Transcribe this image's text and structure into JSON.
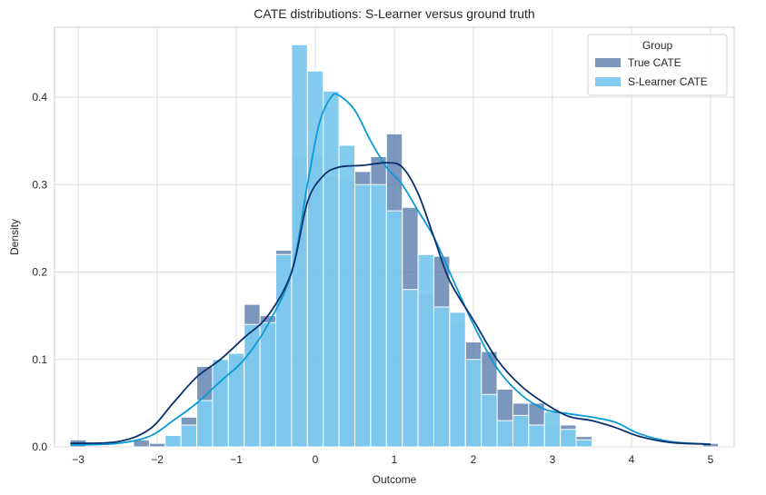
{
  "chart_data": {
    "type": "histogram",
    "title": "CATE distributions: S-Learner versus ground truth",
    "xlabel": "Outcome",
    "ylabel": "Density",
    "xlim": [
      -3.3,
      5.3
    ],
    "ylim": [
      0,
      0.48
    ],
    "xticks": [
      -3,
      -2,
      -1,
      0,
      1,
      2,
      3,
      4,
      5
    ],
    "xtick_labels": [
      "−3",
      "−2",
      "−1",
      "0",
      "1",
      "2",
      "3",
      "4",
      "5"
    ],
    "yticks": [
      0.0,
      0.1,
      0.2,
      0.3,
      0.4
    ],
    "ytick_labels": [
      "0.0",
      "0.1",
      "0.2",
      "0.3",
      "0.4"
    ],
    "grid": true,
    "bin_start": -3.1,
    "bin_width": 0.2,
    "legend": {
      "title": "Group",
      "position": "top-right",
      "entries": [
        "True CATE",
        "S-Learner CATE"
      ]
    },
    "series": [
      {
        "name": "True CATE",
        "color": "#4a6fa5",
        "kde_color": "#08306b",
        "values": [
          0.008,
          0.0,
          0.0,
          0.0,
          0.008,
          0.004,
          0.013,
          0.034,
          0.092,
          0.1,
          0.105,
          0.163,
          0.15,
          0.225,
          0.332,
          0.332,
          0.31,
          0.305,
          0.315,
          0.332,
          0.358,
          0.274,
          0.175,
          0.218,
          0.142,
          0.12,
          0.109,
          0.066,
          0.05,
          0.05,
          0.025,
          0.025,
          0.012,
          0.0,
          0.0,
          0.0,
          0.0,
          0.0,
          0.0,
          0.0,
          0.004
        ],
        "kde": [
          [
            -3.1,
            0.004
          ],
          [
            -2.5,
            0.006
          ],
          [
            -2.1,
            0.02
          ],
          [
            -1.8,
            0.05
          ],
          [
            -1.5,
            0.08
          ],
          [
            -1.2,
            0.1
          ],
          [
            -0.9,
            0.125
          ],
          [
            -0.6,
            0.15
          ],
          [
            -0.3,
            0.2
          ],
          [
            -0.1,
            0.28
          ],
          [
            0.1,
            0.31
          ],
          [
            0.3,
            0.32
          ],
          [
            0.6,
            0.322
          ],
          [
            0.9,
            0.325
          ],
          [
            1.1,
            0.32
          ],
          [
            1.3,
            0.29
          ],
          [
            1.5,
            0.24
          ],
          [
            1.7,
            0.19
          ],
          [
            2.0,
            0.145
          ],
          [
            2.3,
            0.1
          ],
          [
            2.6,
            0.07
          ],
          [
            2.9,
            0.05
          ],
          [
            3.2,
            0.035
          ],
          [
            3.5,
            0.03
          ],
          [
            3.8,
            0.022
          ],
          [
            4.1,
            0.012
          ],
          [
            4.5,
            0.005
          ],
          [
            5.0,
            0.003
          ]
        ]
      },
      {
        "name": "S-Learner CATE",
        "color": "#7dc9ee",
        "kde_color": "#0a9ad9",
        "values": [
          0.0,
          0.0,
          0.0,
          0.0,
          0.0,
          0.0,
          0.013,
          0.025,
          0.053,
          0.1,
          0.107,
          0.14,
          0.142,
          0.22,
          0.46,
          0.43,
          0.407,
          0.345,
          0.3,
          0.3,
          0.27,
          0.18,
          0.22,
          0.16,
          0.154,
          0.1,
          0.06,
          0.03,
          0.036,
          0.025,
          0.04,
          0.02,
          0.008,
          0.0,
          0.0,
          0.0,
          0.0,
          0.0,
          0.0,
          0.0,
          0.0
        ],
        "kde": [
          [
            -3.1,
            0.002
          ],
          [
            -2.5,
            0.004
          ],
          [
            -2.1,
            0.012
          ],
          [
            -1.8,
            0.03
          ],
          [
            -1.5,
            0.05
          ],
          [
            -1.2,
            0.075
          ],
          [
            -0.9,
            0.1
          ],
          [
            -0.6,
            0.14
          ],
          [
            -0.3,
            0.2
          ],
          [
            -0.1,
            0.3
          ],
          [
            0.05,
            0.37
          ],
          [
            0.2,
            0.4
          ],
          [
            0.3,
            0.402
          ],
          [
            0.5,
            0.385
          ],
          [
            0.7,
            0.35
          ],
          [
            0.9,
            0.32
          ],
          [
            1.1,
            0.3
          ],
          [
            1.3,
            0.27
          ],
          [
            1.5,
            0.24
          ],
          [
            1.7,
            0.2
          ],
          [
            2.0,
            0.14
          ],
          [
            2.3,
            0.09
          ],
          [
            2.6,
            0.06
          ],
          [
            2.9,
            0.043
          ],
          [
            3.2,
            0.038
          ],
          [
            3.5,
            0.034
          ],
          [
            3.8,
            0.028
          ],
          [
            4.1,
            0.015
          ],
          [
            4.5,
            0.006
          ],
          [
            5.0,
            0.003
          ]
        ]
      }
    ]
  }
}
